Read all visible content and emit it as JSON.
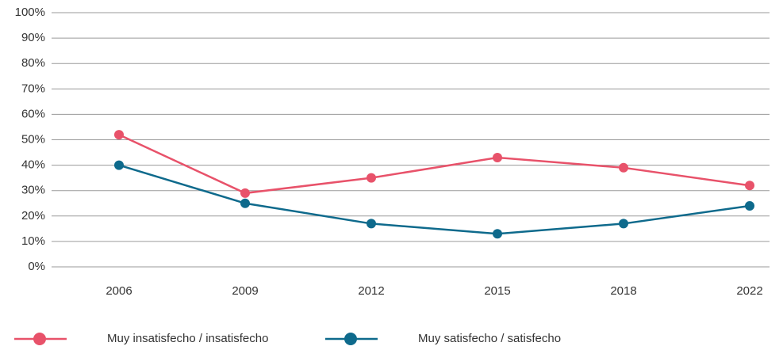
{
  "chart_data": {
    "type": "line",
    "categories": [
      "2006",
      "2009",
      "2012",
      "2015",
      "2018",
      "2022"
    ],
    "series": [
      {
        "name": "Muy insatisfecho / insatisfecho",
        "color": "#e8526a",
        "values": [
          52,
          29,
          35,
          43,
          39,
          32
        ]
      },
      {
        "name": "Muy satisfecho / satisfecho",
        "color": "#0e6a8c",
        "values": [
          40,
          25,
          17,
          13,
          17,
          24
        ]
      }
    ],
    "ylim": [
      0,
      100
    ],
    "yticks": [
      {
        "value": 0,
        "label": "0%"
      },
      {
        "value": 10,
        "label": "10%"
      },
      {
        "value": 20,
        "label": "20%"
      },
      {
        "value": 30,
        "label": "30%"
      },
      {
        "value": 40,
        "label": "40%"
      },
      {
        "value": 50,
        "label": "50%"
      },
      {
        "value": 60,
        "label": "60%"
      },
      {
        "value": 70,
        "label": "70%"
      },
      {
        "value": 80,
        "label": "80%"
      },
      {
        "value": 90,
        "label": "90%"
      },
      {
        "value": 100,
        "label": "100%"
      }
    ],
    "grid": true,
    "legend": "bottom"
  }
}
